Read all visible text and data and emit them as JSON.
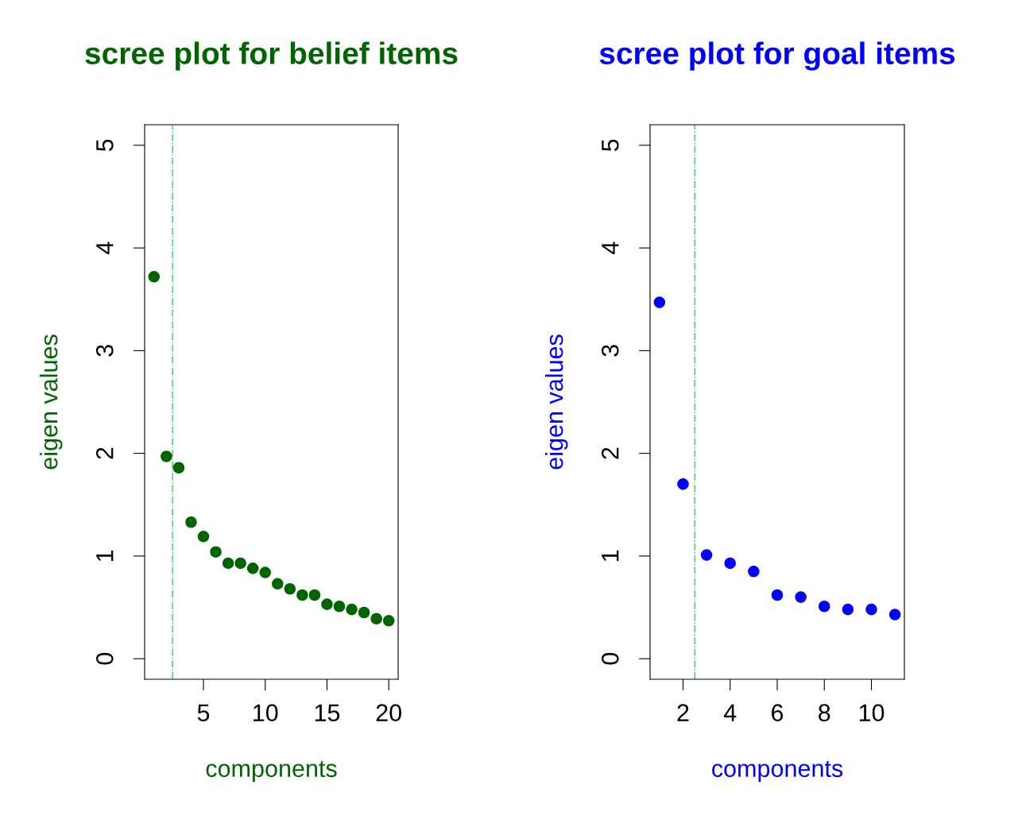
{
  "chart_data": [
    {
      "type": "scatter",
      "title": "scree plot for belief items",
      "xlabel": "components",
      "ylabel": "eigen values",
      "marker": "circle",
      "grid": false,
      "legend": false,
      "x": [
        1,
        2,
        3,
        4,
        5,
        6,
        7,
        8,
        9,
        10,
        11,
        12,
        13,
        14,
        15,
        16,
        17,
        18,
        19,
        20
      ],
      "series": [
        {
          "color": "#006400",
          "values": [
            3.72,
            1.97,
            1.86,
            1.33,
            1.19,
            1.04,
            0.93,
            0.93,
            0.88,
            0.84,
            0.73,
            0.68,
            0.62,
            0.62,
            0.53,
            0.51,
            0.48,
            0.45,
            0.39,
            0.37
          ]
        }
      ],
      "xlim": [
        0.24,
        20.76
      ],
      "xticks": [
        5,
        10,
        15,
        20
      ],
      "ylim": [
        -0.2,
        5.2
      ],
      "yticks": [
        0,
        1,
        2,
        3,
        4,
        5
      ],
      "ref_lines": [
        {
          "axis": "x",
          "value": 2.5,
          "color": "#33cc66",
          "line_style": "dashdot"
        }
      ]
    },
    {
      "type": "scatter",
      "title": "scree plot for goal items",
      "xlabel": "components",
      "ylabel": "eigen values",
      "marker": "circle",
      "grid": false,
      "legend": false,
      "x": [
        1,
        2,
        3,
        4,
        5,
        6,
        7,
        8,
        9,
        10,
        11
      ],
      "series": [
        {
          "color": "#0000ff",
          "values": [
            3.47,
            1.7,
            1.01,
            0.93,
            0.85,
            0.62,
            0.6,
            0.51,
            0.48,
            0.48,
            0.43
          ]
        }
      ],
      "xlim": [
        0.6,
        11.4
      ],
      "xticks": [
        2,
        4,
        6,
        8,
        10
      ],
      "ylim": [
        -0.2,
        5.2
      ],
      "yticks": [
        0,
        1,
        2,
        3,
        4,
        5
      ],
      "ref_lines": [
        {
          "axis": "x",
          "value": 2.5,
          "color": "#33cc66",
          "line_style": "dashdot"
        }
      ]
    }
  ]
}
